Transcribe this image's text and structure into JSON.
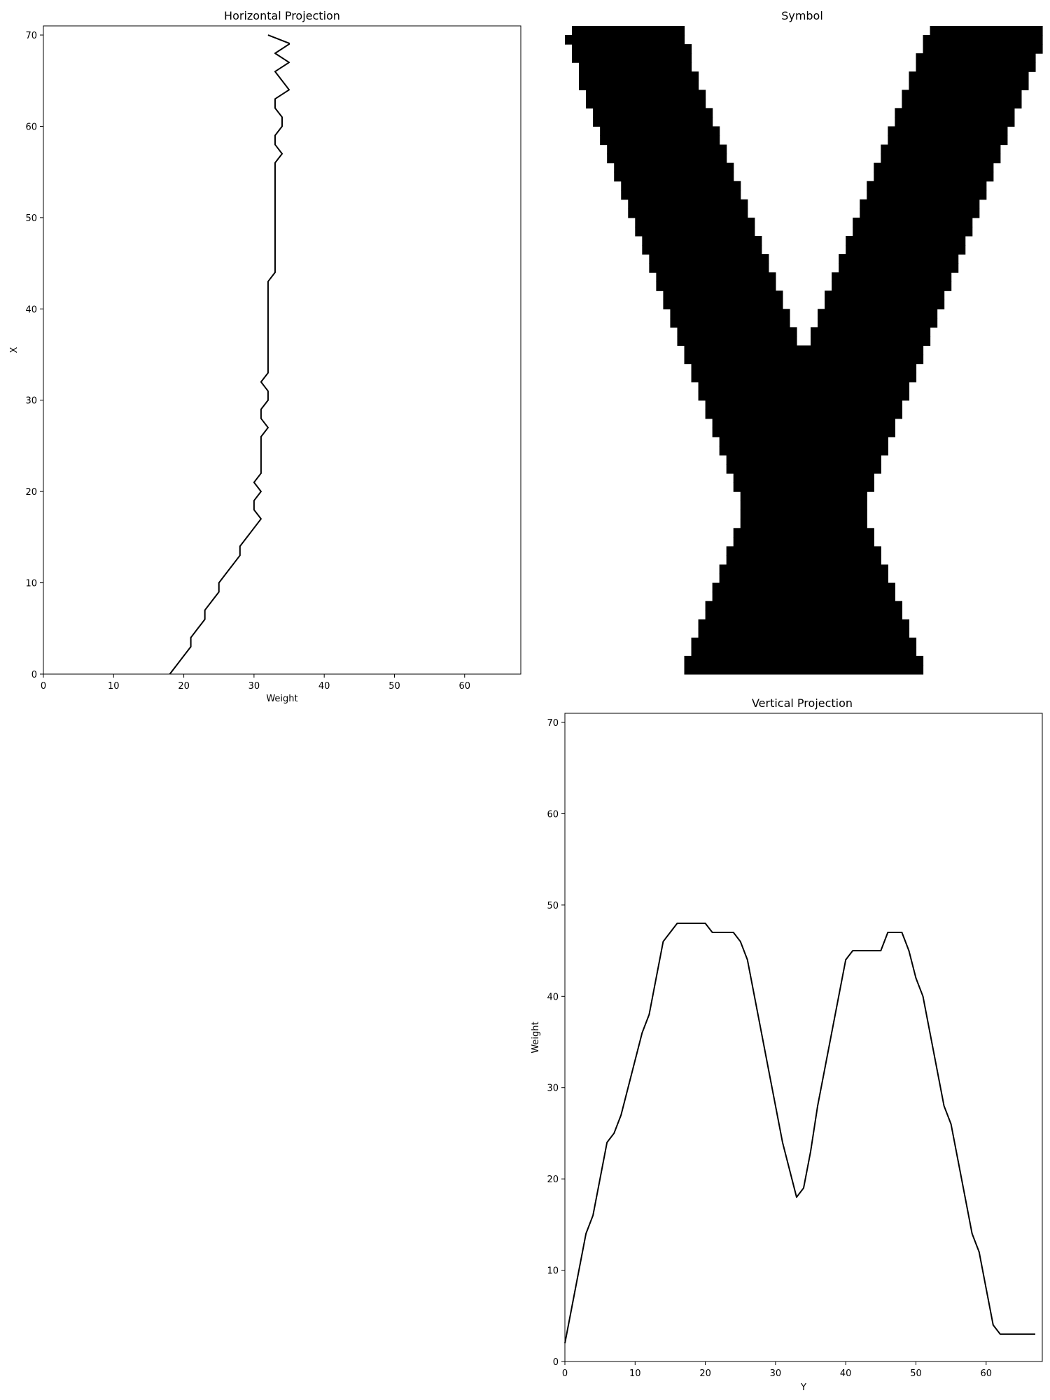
{
  "chart_data": [
    {
      "type": "line",
      "title": "Horizontal Projection",
      "xlabel": "Weight",
      "ylabel": "X",
      "xlim": [
        0,
        68
      ],
      "ylim": [
        0,
        71
      ],
      "xticks": [
        0,
        10,
        20,
        30,
        40,
        50,
        60
      ],
      "yticks": [
        0,
        10,
        20,
        30,
        40,
        50,
        60,
        70
      ],
      "grid": false,
      "series": [
        {
          "x": [
            18,
            19,
            20,
            21,
            21,
            22,
            23,
            23,
            24,
            25,
            25,
            26,
            27,
            28,
            28,
            29,
            30,
            31,
            30,
            30,
            31,
            30,
            31,
            31,
            31,
            31,
            31,
            32,
            31,
            31,
            32,
            32,
            31,
            32,
            32,
            32,
            32,
            32,
            32,
            32,
            32,
            32,
            32,
            32,
            33,
            33,
            33,
            33,
            33,
            33,
            33,
            33,
            33,
            33,
            33,
            33,
            33,
            34,
            33,
            33,
            34,
            34,
            33,
            33,
            35,
            34,
            33,
            35,
            33,
            35,
            35,
            32
          ],
          "y": [
            0,
            1,
            2,
            3,
            4,
            5,
            6,
            7,
            8,
            9,
            10,
            11,
            12,
            13,
            14,
            15,
            16,
            17,
            18,
            19,
            20,
            21,
            22,
            23,
            24,
            25,
            26,
            27,
            28,
            29,
            30,
            31,
            32,
            33,
            34,
            35,
            36,
            37,
            38,
            39,
            40,
            41,
            42,
            43,
            44,
            45,
            46,
            47,
            48,
            49,
            50,
            51,
            52,
            53,
            54,
            55,
            56,
            57,
            58,
            59,
            60,
            61,
            62,
            63,
            64,
            65,
            66,
            67,
            68,
            69,
            69.1,
            70
          ]
        }
      ]
    },
    {
      "type": "heatmap",
      "title": "Symbol",
      "rows": 71,
      "cols": 68,
      "row_order": "top-to-bottom",
      "fill_color": "#000000",
      "background_color": "#ffffff",
      "axes_visible": false,
      "filled_spans_per_row": [
        [
          1,
          17
        ],
        [
          0,
          17
        ],
        [
          1,
          18
        ],
        [
          1,
          18
        ],
        [
          2,
          18
        ],
        [
          2,
          19
        ],
        [
          2,
          19
        ],
        [
          3,
          20
        ],
        [
          3,
          20
        ],
        [
          4,
          21
        ],
        [
          4,
          21
        ],
        [
          5,
          22
        ],
        [
          5,
          22
        ],
        [
          6,
          23
        ],
        [
          6,
          23
        ],
        [
          7,
          24
        ],
        [
          7,
          24
        ],
        [
          8,
          25
        ],
        [
          8,
          25
        ],
        [
          9,
          26
        ],
        [
          9,
          26
        ],
        [
          10,
          27
        ],
        [
          10,
          27
        ],
        [
          11,
          28
        ],
        [
          11,
          28
        ],
        [
          12,
          29
        ],
        [
          12,
          29
        ],
        [
          13,
          30
        ],
        [
          13,
          30
        ],
        [
          14,
          31
        ],
        [
          14,
          31
        ],
        [
          15,
          32
        ],
        [
          15,
          32
        ],
        [
          16,
          33
        ],
        [
          16,
          33
        ],
        [
          17,
          34
        ],
        [
          17,
          34
        ],
        [
          18,
          35
        ],
        [
          18,
          35
        ],
        [
          19,
          36
        ],
        [
          19,
          36
        ],
        [
          20,
          37
        ],
        [
          20,
          37
        ],
        [
          21,
          38
        ],
        [
          21,
          38
        ],
        [
          22,
          39
        ],
        [
          22,
          39
        ],
        [
          23,
          40
        ],
        [
          23,
          40
        ],
        [
          24,
          41
        ],
        [
          24,
          41
        ],
        [
          25,
          42
        ],
        [
          25,
          42
        ],
        [
          26,
          43
        ],
        [
          26,
          43
        ],
        [
          27,
          44
        ],
        [
          27,
          44
        ],
        [
          28,
          45
        ],
        [
          28,
          45
        ],
        [
          29,
          46
        ],
        [
          29,
          46
        ],
        [
          30,
          47
        ],
        [
          30,
          47
        ],
        [
          31,
          48
        ],
        [
          31,
          48
        ],
        [
          32,
          49
        ],
        [
          32,
          49
        ],
        [
          33,
          50
        ],
        [
          33,
          50
        ],
        [
          34,
          51
        ],
        [
          34,
          51
        ]
      ],
      "filled_spans_right_arm": [
        [
          52,
          68
        ],
        [
          51,
          68
        ],
        [
          51,
          68
        ],
        [
          50,
          67
        ],
        [
          50,
          67
        ],
        [
          49,
          66
        ],
        [
          49,
          66
        ],
        [
          48,
          65
        ],
        [
          48,
          65
        ],
        [
          47,
          64
        ],
        [
          47,
          64
        ],
        [
          46,
          63
        ],
        [
          46,
          63
        ],
        [
          45,
          62
        ],
        [
          45,
          62
        ],
        [
          44,
          61
        ],
        [
          44,
          61
        ],
        [
          43,
          60
        ],
        [
          43,
          60
        ],
        [
          42,
          59
        ],
        [
          42,
          59
        ],
        [
          41,
          58
        ],
        [
          41,
          58
        ],
        [
          40,
          57
        ],
        [
          40,
          57
        ],
        [
          39,
          56
        ],
        [
          39,
          56
        ],
        [
          38,
          55
        ],
        [
          38,
          55
        ],
        [
          37,
          54
        ],
        [
          37,
          54
        ],
        [
          36,
          53
        ],
        [
          36,
          53
        ],
        [
          35,
          52
        ],
        [
          35,
          52
        ],
        [
          34,
          51
        ],
        [
          34,
          51
        ],
        [
          33,
          50
        ],
        [
          33,
          50
        ],
        [
          32,
          49
        ],
        [
          32,
          49
        ],
        [
          31,
          48
        ],
        [
          31,
          48
        ],
        [
          30,
          47
        ],
        [
          30,
          47
        ],
        [
          29,
          46
        ],
        [
          29,
          46
        ],
        [
          28,
          45
        ],
        [
          28,
          45
        ],
        [
          27,
          44
        ],
        [
          27,
          44
        ],
        [
          26,
          43
        ],
        [
          26,
          43
        ],
        [
          25,
          42
        ],
        [
          25,
          42
        ],
        [
          24,
          41
        ],
        [
          24,
          41
        ],
        [
          23,
          40
        ],
        [
          23,
          40
        ],
        [
          22,
          39
        ],
        [
          22,
          39
        ],
        [
          21,
          38
        ],
        [
          21,
          38
        ],
        [
          20,
          37
        ],
        [
          20,
          37
        ],
        [
          19,
          36
        ],
        [
          19,
          36
        ],
        [
          18,
          35
        ],
        [
          18,
          35
        ],
        [
          17,
          34
        ],
        [
          17,
          34
        ]
      ]
    },
    {
      "type": "line",
      "title": "Vertical Projection",
      "xlabel": "Y",
      "ylabel": "Weight",
      "xlim": [
        0,
        68
      ],
      "ylim": [
        0,
        71
      ],
      "xticks": [
        0,
        10,
        20,
        30,
        40,
        50,
        60
      ],
      "yticks": [
        0,
        10,
        20,
        30,
        40,
        50,
        60,
        70
      ],
      "grid": false,
      "series": [
        {
          "x": [
            0,
            1,
            2,
            3,
            4,
            5,
            6,
            7,
            8,
            9,
            10,
            11,
            12,
            13,
            14,
            15,
            16,
            17,
            18,
            19,
            20,
            21,
            22,
            23,
            24,
            25,
            26,
            27,
            28,
            29,
            30,
            31,
            32,
            33,
            34,
            35,
            36,
            37,
            38,
            39,
            40,
            41,
            42,
            43,
            44,
            45,
            46,
            47,
            48,
            49,
            50,
            51,
            52,
            53,
            54,
            55,
            56,
            57,
            58,
            59,
            60,
            61,
            62,
            63,
            64,
            65,
            66,
            67
          ],
          "y": [
            2,
            6,
            10,
            14,
            16,
            20,
            24,
            25,
            27,
            30,
            33,
            36,
            38,
            42,
            46,
            47,
            48,
            48,
            48,
            48,
            48,
            47,
            47,
            47,
            47,
            46,
            44,
            40,
            36,
            32,
            28,
            24,
            21,
            18,
            19,
            23,
            28,
            32,
            36,
            40,
            44,
            45,
            45,
            45,
            45,
            45,
            47,
            47,
            47,
            45,
            42,
            40,
            36,
            32,
            28,
            26,
            22,
            18,
            14,
            12,
            8,
            4,
            3,
            3,
            3,
            3,
            3,
            3
          ]
        }
      ]
    }
  ]
}
